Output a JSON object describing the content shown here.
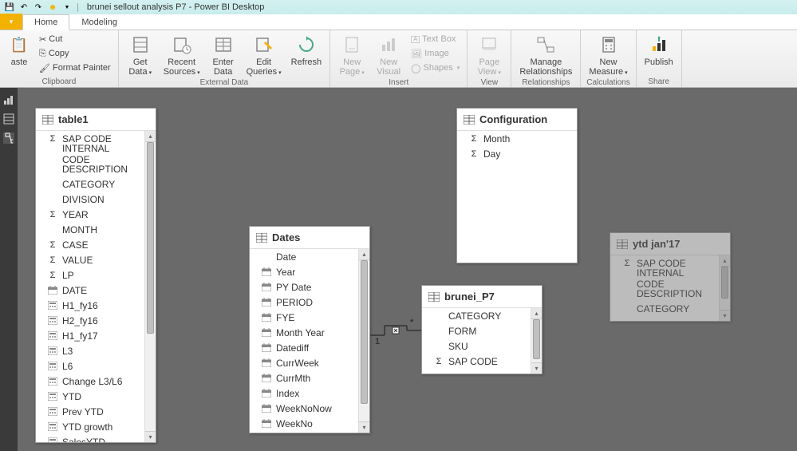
{
  "window": {
    "title": "brunei sellout analysis P7 - Power BI Desktop"
  },
  "ribbon_tabs": {
    "home": "Home",
    "modeling": "Modeling"
  },
  "clipboard": {
    "group_label": "Clipboard",
    "paste": "aste",
    "cut": "Cut",
    "copy": "Copy",
    "format_painter": "Format Painter"
  },
  "external_data": {
    "group_label": "External Data",
    "get_data": "Get\nData",
    "recent_sources": "Recent\nSources",
    "enter_data": "Enter\nData",
    "edit_queries": "Edit\nQueries",
    "refresh": "Refresh"
  },
  "insert": {
    "group_label": "Insert",
    "new_page": "New\nPage",
    "new_visual": "New\nVisual",
    "text_box": "Text Box",
    "image": "Image",
    "shapes": "Shapes"
  },
  "view": {
    "group_label": "View",
    "page_view": "Page\nView"
  },
  "relationships": {
    "group_label": "Relationships",
    "manage": "Manage\nRelationships"
  },
  "calculations": {
    "group_label": "Calculations",
    "new_measure": "New\nMeasure"
  },
  "share": {
    "group_label": "Share",
    "publish": "Publish"
  },
  "tables": {
    "table1": {
      "name": "table1",
      "fields": [
        {
          "icon": "sigma",
          "name": "SAP CODE"
        },
        {
          "icon": "",
          "name": "INTERNAL CODE"
        },
        {
          "icon": "",
          "name": "DESCRIPTION"
        },
        {
          "icon": "",
          "name": "CATEGORY"
        },
        {
          "icon": "",
          "name": "DIVISION"
        },
        {
          "icon": "sigma",
          "name": "YEAR"
        },
        {
          "icon": "",
          "name": "MONTH"
        },
        {
          "icon": "sigma",
          "name": "CASE"
        },
        {
          "icon": "sigma",
          "name": "VALUE"
        },
        {
          "icon": "sigma",
          "name": "LP"
        },
        {
          "icon": "calendar",
          "name": "DATE"
        },
        {
          "icon": "calc",
          "name": "H1_fy16"
        },
        {
          "icon": "calc",
          "name": "H2_fy16"
        },
        {
          "icon": "calc",
          "name": "H1_fy17"
        },
        {
          "icon": "calc",
          "name": "L3"
        },
        {
          "icon": "calc",
          "name": "L6"
        },
        {
          "icon": "calc",
          "name": "Change L3/L6"
        },
        {
          "icon": "calc",
          "name": "YTD"
        },
        {
          "icon": "calc",
          "name": "Prev YTD"
        },
        {
          "icon": "calc",
          "name": "YTD growth"
        },
        {
          "icon": "calc",
          "name": "SalesYTD"
        }
      ]
    },
    "dates": {
      "name": "Dates",
      "fields": [
        {
          "icon": "",
          "name": "Date"
        },
        {
          "icon": "calendar",
          "name": "Year"
        },
        {
          "icon": "calendar",
          "name": "PY Date"
        },
        {
          "icon": "calendar",
          "name": "PERIOD"
        },
        {
          "icon": "calendar",
          "name": "FYE"
        },
        {
          "icon": "calendar",
          "name": "Month Year"
        },
        {
          "icon": "calendar",
          "name": "Datediff"
        },
        {
          "icon": "calendar",
          "name": "CurrWeek"
        },
        {
          "icon": "calendar",
          "name": "CurrMth"
        },
        {
          "icon": "calendar",
          "name": "Index"
        },
        {
          "icon": "calendar",
          "name": "WeekNoNow"
        },
        {
          "icon": "calendar",
          "name": "WeekNo"
        }
      ]
    },
    "configuration": {
      "name": "Configuration",
      "fields": [
        {
          "icon": "sigma",
          "name": "Month"
        },
        {
          "icon": "sigma",
          "name": "Day"
        }
      ]
    },
    "brunei_p7": {
      "name": "brunei_P7",
      "fields": [
        {
          "icon": "",
          "name": "CATEGORY"
        },
        {
          "icon": "",
          "name": "FORM"
        },
        {
          "icon": "",
          "name": "SKU"
        },
        {
          "icon": "sigma",
          "name": "SAP CODE"
        }
      ]
    },
    "ytd_jan17": {
      "name": "ytd jan'17",
      "fields": [
        {
          "icon": "sigma",
          "name": "SAP CODE"
        },
        {
          "icon": "",
          "name": "INTERNAL CODE"
        },
        {
          "icon": "",
          "name": "DESCRIPTION"
        },
        {
          "icon": "",
          "name": "CATEGORY"
        }
      ]
    }
  },
  "relationship": {
    "one": "1",
    "many": "*"
  }
}
